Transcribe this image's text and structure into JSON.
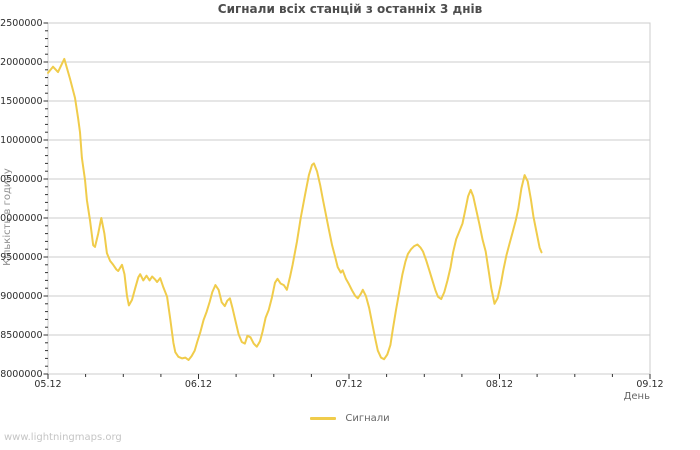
{
  "watermark": "www.lightningmaps.org",
  "chart_data": {
    "type": "line",
    "title": "Сигнали всіх станцій з останніх 3 днів",
    "xlabel": "День",
    "ylabel": "Кількість в годину",
    "grid": "horizontal-only",
    "x_axis": {
      "tick_labels": [
        "05.12",
        "06.12",
        "07.12",
        "08.12",
        "09.12"
      ],
      "tick_hours": [
        0,
        24,
        48,
        72,
        96
      ],
      "minor_step_hours": 6,
      "range_hours": [
        0,
        96
      ]
    },
    "y_axis": {
      "ticks": [
        8000000,
        8500000,
        9000000,
        9500000,
        10000000,
        10500000,
        11000000,
        11500000,
        12000000,
        12500000
      ],
      "minor_step": 100000,
      "range": [
        8000000,
        12500000
      ]
    },
    "colors": {
      "line": "#f0cc4b",
      "grid": "#cccccc",
      "axis_border": "#cccccc",
      "tick": "#333333",
      "tick_label": "#2e2e2e",
      "title": "#4d4d4d",
      "axis_title": "#8f8f8f",
      "legend_label": "#666666",
      "watermark": "#c5c5c5",
      "background": "#ffffff"
    },
    "legend": [
      {
        "label": "Сигнали",
        "color": "#f0cc4b"
      }
    ],
    "series": [
      {
        "name": "Сигнали",
        "points": [
          [
            0,
            11860000
          ],
          [
            0.8,
            11940000
          ],
          [
            1.6,
            11870000
          ],
          [
            2.6,
            12040000
          ],
          [
            3.5,
            11790000
          ],
          [
            4.3,
            11540000
          ],
          [
            4.8,
            11280000
          ],
          [
            5.1,
            11100000
          ],
          [
            5.4,
            10770000
          ],
          [
            5.9,
            10490000
          ],
          [
            6.2,
            10230000
          ],
          [
            6.7,
            9970000
          ],
          [
            7.2,
            9650000
          ],
          [
            7.5,
            9630000
          ],
          [
            8,
            9800000
          ],
          [
            8.5,
            10000000
          ],
          [
            9,
            9800000
          ],
          [
            9.4,
            9550000
          ],
          [
            9.9,
            9450000
          ],
          [
            10.4,
            9400000
          ],
          [
            10.9,
            9340000
          ],
          [
            11.2,
            9320000
          ],
          [
            11.8,
            9400000
          ],
          [
            12.2,
            9280000
          ],
          [
            12.6,
            9000000
          ],
          [
            12.9,
            8880000
          ],
          [
            13.4,
            8950000
          ],
          [
            13.9,
            9100000
          ],
          [
            14.4,
            9240000
          ],
          [
            14.7,
            9280000
          ],
          [
            15.2,
            9200000
          ],
          [
            15.7,
            9260000
          ],
          [
            16.2,
            9200000
          ],
          [
            16.6,
            9250000
          ],
          [
            17.1,
            9210000
          ],
          [
            17.4,
            9180000
          ],
          [
            17.9,
            9230000
          ],
          [
            18.4,
            9110000
          ],
          [
            19,
            8990000
          ],
          [
            19.5,
            8700000
          ],
          [
            20,
            8400000
          ],
          [
            20.3,
            8280000
          ],
          [
            20.8,
            8220000
          ],
          [
            21.4,
            8200000
          ],
          [
            21.9,
            8210000
          ],
          [
            22.4,
            8180000
          ],
          [
            22.9,
            8230000
          ],
          [
            23.4,
            8300000
          ],
          [
            23.8,
            8410000
          ],
          [
            24.3,
            8540000
          ],
          [
            24.8,
            8690000
          ],
          [
            25.3,
            8800000
          ],
          [
            25.8,
            8930000
          ],
          [
            26.2,
            9050000
          ],
          [
            26.7,
            9140000
          ],
          [
            27.2,
            9080000
          ],
          [
            27.7,
            8920000
          ],
          [
            28.2,
            8870000
          ],
          [
            28.6,
            8940000
          ],
          [
            29,
            8970000
          ],
          [
            29.4,
            8850000
          ],
          [
            29.9,
            8680000
          ],
          [
            30.4,
            8510000
          ],
          [
            30.9,
            8410000
          ],
          [
            31.4,
            8390000
          ],
          [
            31.8,
            8490000
          ],
          [
            32.3,
            8470000
          ],
          [
            32.8,
            8390000
          ],
          [
            33.3,
            8350000
          ],
          [
            33.8,
            8420000
          ],
          [
            34.2,
            8540000
          ],
          [
            34.7,
            8720000
          ],
          [
            35.2,
            8820000
          ],
          [
            35.7,
            8980000
          ],
          [
            36.2,
            9170000
          ],
          [
            36.6,
            9220000
          ],
          [
            37.1,
            9160000
          ],
          [
            37.6,
            9140000
          ],
          [
            38.1,
            9080000
          ],
          [
            38.6,
            9250000
          ],
          [
            39,
            9400000
          ],
          [
            39.7,
            9700000
          ],
          [
            40.3,
            10000000
          ],
          [
            41,
            10300000
          ],
          [
            41.6,
            10550000
          ],
          [
            42.1,
            10680000
          ],
          [
            42.4,
            10700000
          ],
          [
            42.9,
            10600000
          ],
          [
            43.4,
            10420000
          ],
          [
            43.8,
            10250000
          ],
          [
            44.3,
            10050000
          ],
          [
            44.8,
            9850000
          ],
          [
            45.3,
            9650000
          ],
          [
            45.8,
            9500000
          ],
          [
            46.2,
            9370000
          ],
          [
            46.7,
            9300000
          ],
          [
            47,
            9330000
          ],
          [
            47.5,
            9220000
          ],
          [
            48,
            9150000
          ],
          [
            48.5,
            9070000
          ],
          [
            49,
            9000000
          ],
          [
            49.4,
            8970000
          ],
          [
            49.9,
            9030000
          ],
          [
            50.2,
            9080000
          ],
          [
            50.7,
            9000000
          ],
          [
            51.2,
            8850000
          ],
          [
            51.7,
            8650000
          ],
          [
            52.2,
            8450000
          ],
          [
            52.6,
            8300000
          ],
          [
            53.1,
            8210000
          ],
          [
            53.6,
            8190000
          ],
          [
            54.1,
            8250000
          ],
          [
            54.6,
            8370000
          ],
          [
            55,
            8580000
          ],
          [
            55.5,
            8820000
          ],
          [
            56,
            9050000
          ],
          [
            56.5,
            9270000
          ],
          [
            57,
            9440000
          ],
          [
            57.4,
            9540000
          ],
          [
            57.9,
            9600000
          ],
          [
            58.4,
            9640000
          ],
          [
            58.9,
            9660000
          ],
          [
            59.4,
            9620000
          ],
          [
            59.8,
            9570000
          ],
          [
            60.3,
            9460000
          ],
          [
            60.8,
            9330000
          ],
          [
            61.3,
            9200000
          ],
          [
            61.8,
            9070000
          ],
          [
            62.2,
            8990000
          ],
          [
            62.7,
            8960000
          ],
          [
            63.2,
            9050000
          ],
          [
            63.7,
            9200000
          ],
          [
            64.2,
            9370000
          ],
          [
            64.6,
            9560000
          ],
          [
            65.1,
            9730000
          ],
          [
            65.6,
            9830000
          ],
          [
            66.1,
            9930000
          ],
          [
            66.6,
            10120000
          ],
          [
            67,
            10280000
          ],
          [
            67.4,
            10360000
          ],
          [
            67.8,
            10280000
          ],
          [
            68.3,
            10100000
          ],
          [
            68.8,
            9920000
          ],
          [
            69.3,
            9720000
          ],
          [
            69.8,
            9570000
          ],
          [
            70.2,
            9360000
          ],
          [
            70.7,
            9100000
          ],
          [
            71.2,
            8900000
          ],
          [
            71.7,
            8970000
          ],
          [
            72.2,
            9150000
          ],
          [
            72.6,
            9330000
          ],
          [
            73.1,
            9520000
          ],
          [
            73.6,
            9670000
          ],
          [
            74.1,
            9820000
          ],
          [
            74.6,
            9970000
          ],
          [
            75,
            10120000
          ],
          [
            75.5,
            10380000
          ],
          [
            76,
            10550000
          ],
          [
            76.5,
            10470000
          ],
          [
            77,
            10240000
          ],
          [
            77.4,
            10020000
          ],
          [
            77.9,
            9820000
          ],
          [
            78.4,
            9620000
          ],
          [
            78.7,
            9560000
          ]
        ]
      }
    ]
  }
}
